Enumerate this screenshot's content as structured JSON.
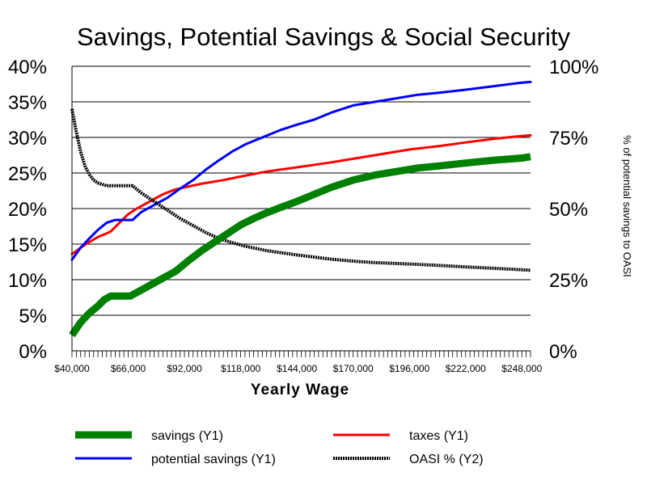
{
  "chart_data": {
    "type": "line",
    "title": "Savings, Potential Savings & Social Security",
    "xlabel": "Yearly Wage",
    "ylabel": "",
    "y2label": "% of potential savings to OASI",
    "x_range": [
      40000,
      252000
    ],
    "ylim": [
      0,
      0.4
    ],
    "y2lim": [
      0,
      1.0
    ],
    "y_ticks": [
      "0%",
      "5%",
      "10%",
      "15%",
      "20%",
      "25%",
      "30%",
      "35%",
      "40%"
    ],
    "y2_ticks": [
      "0%",
      "25%",
      "50%",
      "75%",
      "100%"
    ],
    "x_ticks": [
      "$40,000",
      "$66,000",
      "$92,000",
      "$118,000",
      "$144,000",
      "$170,000",
      "$196,000",
      "$222,000",
      "$248,000"
    ],
    "x_tick_values": [
      40000,
      66000,
      92000,
      118000,
      144000,
      170000,
      196000,
      222000,
      248000
    ],
    "grid": "horizontal",
    "legend_position": "bottom",
    "series": [
      {
        "name": "savings (Y1)",
        "axis": "y1",
        "color": "#008000",
        "style": "thick",
        "points": [
          [
            40000,
            0.022
          ],
          [
            44000,
            0.04
          ],
          [
            48000,
            0.053
          ],
          [
            52000,
            0.063
          ],
          [
            55000,
            0.072
          ],
          [
            58000,
            0.077
          ],
          [
            61000,
            0.077
          ],
          [
            64000,
            0.077
          ],
          [
            67000,
            0.077
          ],
          [
            70000,
            0.082
          ],
          [
            76000,
            0.092
          ],
          [
            82000,
            0.102
          ],
          [
            88000,
            0.112
          ],
          [
            94000,
            0.127
          ],
          [
            100000,
            0.141
          ],
          [
            106000,
            0.153
          ],
          [
            112000,
            0.165
          ],
          [
            118000,
            0.177
          ],
          [
            124000,
            0.186
          ],
          [
            130000,
            0.194
          ],
          [
            136000,
            0.201
          ],
          [
            144000,
            0.21
          ],
          [
            152000,
            0.22
          ],
          [
            160000,
            0.23
          ],
          [
            170000,
            0.24
          ],
          [
            180000,
            0.247
          ],
          [
            190000,
            0.252
          ],
          [
            200000,
            0.257
          ],
          [
            210000,
            0.26
          ],
          [
            222000,
            0.264
          ],
          [
            235000,
            0.268
          ],
          [
            248000,
            0.271
          ],
          [
            252000,
            0.273
          ]
        ]
      },
      {
        "name": "potential savings (Y1)",
        "axis": "y1",
        "color": "#0000ff",
        "style": "solid",
        "points": [
          [
            40000,
            0.128
          ],
          [
            44000,
            0.145
          ],
          [
            48000,
            0.158
          ],
          [
            52000,
            0.17
          ],
          [
            56000,
            0.18
          ],
          [
            60000,
            0.184
          ],
          [
            64000,
            0.184
          ],
          [
            68000,
            0.184
          ],
          [
            72000,
            0.195
          ],
          [
            78000,
            0.205
          ],
          [
            84000,
            0.215
          ],
          [
            90000,
            0.228
          ],
          [
            96000,
            0.24
          ],
          [
            102000,
            0.255
          ],
          [
            108000,
            0.268
          ],
          [
            114000,
            0.28
          ],
          [
            120000,
            0.29
          ],
          [
            128000,
            0.3
          ],
          [
            136000,
            0.31
          ],
          [
            144000,
            0.318
          ],
          [
            152000,
            0.325
          ],
          [
            160000,
            0.335
          ],
          [
            170000,
            0.345
          ],
          [
            180000,
            0.35
          ],
          [
            190000,
            0.355
          ],
          [
            200000,
            0.36
          ],
          [
            210000,
            0.363
          ],
          [
            222000,
            0.367
          ],
          [
            235000,
            0.372
          ],
          [
            248000,
            0.377
          ],
          [
            252000,
            0.378
          ]
        ]
      },
      {
        "name": "taxes (Y1)",
        "axis": "y1",
        "color": "#ff0000",
        "style": "solid",
        "points": [
          [
            40000,
            0.136
          ],
          [
            44000,
            0.145
          ],
          [
            48000,
            0.153
          ],
          [
            52000,
            0.16
          ],
          [
            56000,
            0.165
          ],
          [
            58000,
            0.168
          ],
          [
            62000,
            0.18
          ],
          [
            66000,
            0.192
          ],
          [
            70000,
            0.2
          ],
          [
            76000,
            0.21
          ],
          [
            82000,
            0.22
          ],
          [
            88000,
            0.227
          ],
          [
            94000,
            0.231
          ],
          [
            100000,
            0.235
          ],
          [
            110000,
            0.24
          ],
          [
            118000,
            0.245
          ],
          [
            130000,
            0.252
          ],
          [
            144000,
            0.258
          ],
          [
            160000,
            0.265
          ],
          [
            170000,
            0.27
          ],
          [
            180000,
            0.275
          ],
          [
            196000,
            0.283
          ],
          [
            210000,
            0.288
          ],
          [
            222000,
            0.293
          ],
          [
            235000,
            0.298
          ],
          [
            248000,
            0.302
          ],
          [
            252000,
            0.303
          ]
        ]
      },
      {
        "name": "OASI % (Y2)",
        "axis": "y2",
        "color": "#000000",
        "style": "dotted",
        "points": [
          [
            40000,
            0.85
          ],
          [
            42000,
            0.77
          ],
          [
            44000,
            0.7
          ],
          [
            46000,
            0.65
          ],
          [
            48000,
            0.62
          ],
          [
            50000,
            0.6
          ],
          [
            52000,
            0.59
          ],
          [
            56000,
            0.58
          ],
          [
            60000,
            0.58
          ],
          [
            64000,
            0.58
          ],
          [
            68000,
            0.58
          ],
          [
            72000,
            0.555
          ],
          [
            78000,
            0.525
          ],
          [
            84000,
            0.495
          ],
          [
            90000,
            0.465
          ],
          [
            96000,
            0.44
          ],
          [
            102000,
            0.415
          ],
          [
            108000,
            0.395
          ],
          [
            114000,
            0.38
          ],
          [
            120000,
            0.368
          ],
          [
            130000,
            0.352
          ],
          [
            144000,
            0.337
          ],
          [
            160000,
            0.322
          ],
          [
            170000,
            0.315
          ],
          [
            180000,
            0.31
          ],
          [
            196000,
            0.305
          ],
          [
            210000,
            0.3
          ],
          [
            222000,
            0.295
          ],
          [
            235000,
            0.29
          ],
          [
            248000,
            0.285
          ],
          [
            252000,
            0.283
          ]
        ]
      }
    ]
  }
}
